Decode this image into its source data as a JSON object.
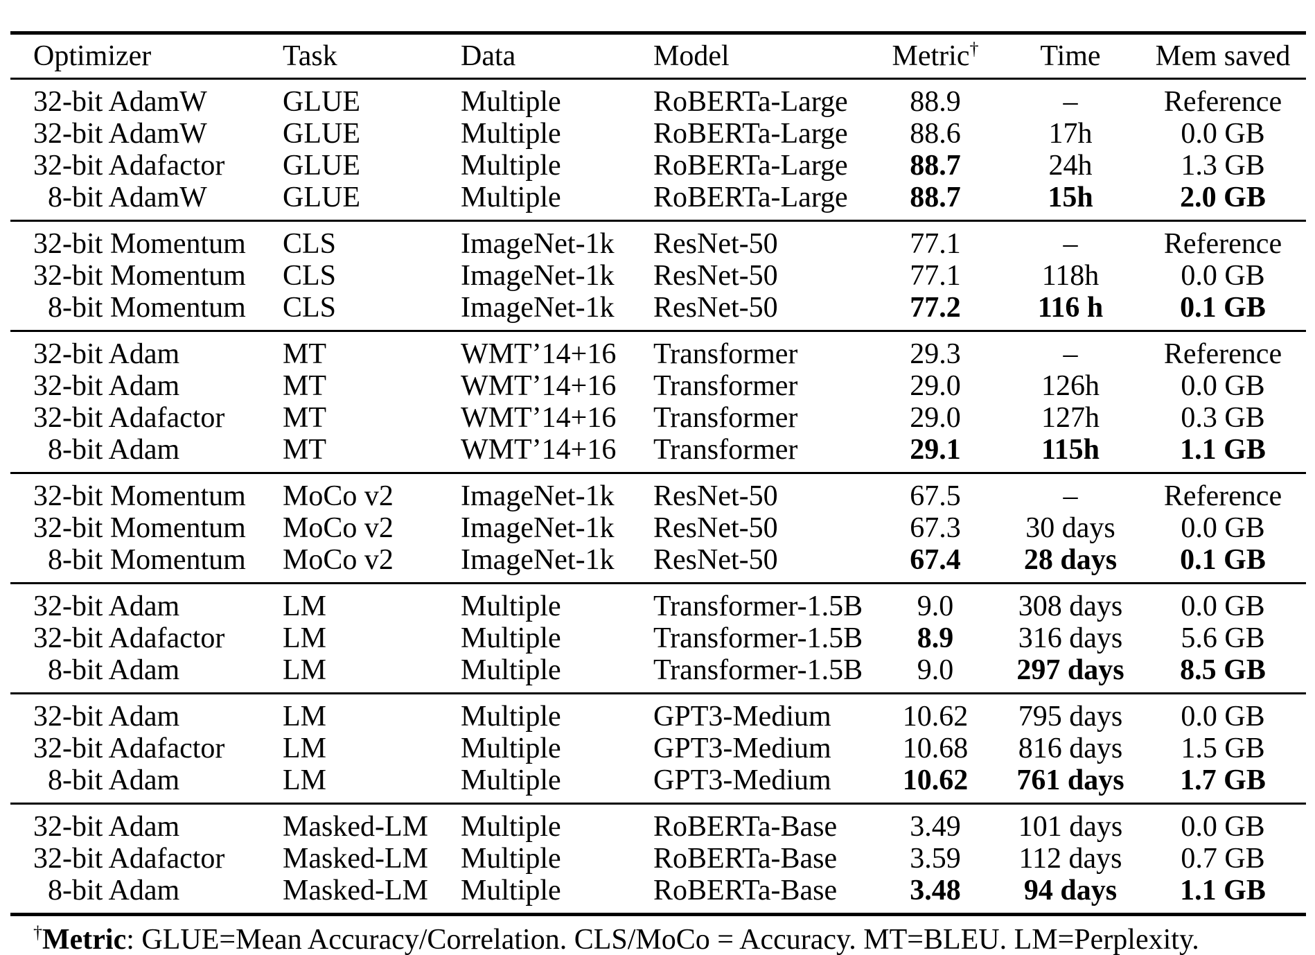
{
  "page": {
    "background_color": "#ffffff",
    "text_color": "#000000"
  },
  "table": {
    "columns": [
      {
        "label": "Optimizer",
        "align": "left"
      },
      {
        "label": "Task",
        "align": "left"
      },
      {
        "label": "Data",
        "align": "left"
      },
      {
        "label": "Model",
        "align": "left"
      },
      {
        "label": "Metric",
        "align": "center",
        "superscript": "†"
      },
      {
        "label": "Time",
        "align": "center"
      },
      {
        "label": "Mem saved",
        "align": "center"
      }
    ],
    "groups": [
      {
        "rows": [
          {
            "optimizer": "32-bit AdamW",
            "indent": false,
            "task": "GLUE",
            "data": "Multiple",
            "model": "RoBERTa-Large",
            "metric": "88.9",
            "metric_bold": false,
            "time": "–",
            "time_bold": false,
            "mem": "Reference",
            "mem_bold": false
          },
          {
            "optimizer": "32-bit AdamW",
            "indent": false,
            "task": "GLUE",
            "data": "Multiple",
            "model": "RoBERTa-Large",
            "metric": "88.6",
            "metric_bold": false,
            "time": "17h",
            "time_bold": false,
            "mem": "0.0 GB",
            "mem_bold": false
          },
          {
            "optimizer": "32-bit Adafactor",
            "indent": false,
            "task": "GLUE",
            "data": "Multiple",
            "model": "RoBERTa-Large",
            "metric": "88.7",
            "metric_bold": true,
            "time": "24h",
            "time_bold": false,
            "mem": "1.3 GB",
            "mem_bold": false
          },
          {
            "optimizer": "8-bit AdamW",
            "indent": true,
            "task": "GLUE",
            "data": "Multiple",
            "model": "RoBERTa-Large",
            "metric": "88.7",
            "metric_bold": true,
            "time": "15h",
            "time_bold": true,
            "mem": "2.0 GB",
            "mem_bold": true
          }
        ]
      },
      {
        "rows": [
          {
            "optimizer": "32-bit Momentum",
            "indent": false,
            "task": "CLS",
            "data": "ImageNet-1k",
            "model": "ResNet-50",
            "metric": "77.1",
            "metric_bold": false,
            "time": "–",
            "time_bold": false,
            "mem": "Reference",
            "mem_bold": false
          },
          {
            "optimizer": "32-bit Momentum",
            "indent": false,
            "task": "CLS",
            "data": "ImageNet-1k",
            "model": "ResNet-50",
            "metric": "77.1",
            "metric_bold": false,
            "time": "118h",
            "time_bold": false,
            "mem": "0.0 GB",
            "mem_bold": false
          },
          {
            "optimizer": "8-bit Momentum",
            "indent": true,
            "task": "CLS",
            "data": "ImageNet-1k",
            "model": "ResNet-50",
            "metric": "77.2",
            "metric_bold": true,
            "time": "116 h",
            "time_bold": true,
            "mem": "0.1 GB",
            "mem_bold": true
          }
        ]
      },
      {
        "rows": [
          {
            "optimizer": "32-bit Adam",
            "indent": false,
            "task": "MT",
            "data": "WMT’14+16",
            "model": "Transformer",
            "metric": "29.3",
            "metric_bold": false,
            "time": "–",
            "time_bold": false,
            "mem": "Reference",
            "mem_bold": false
          },
          {
            "optimizer": "32-bit Adam",
            "indent": false,
            "task": "MT",
            "data": "WMT’14+16",
            "model": "Transformer",
            "metric": "29.0",
            "metric_bold": false,
            "time": "126h",
            "time_bold": false,
            "mem": "0.0 GB",
            "mem_bold": false
          },
          {
            "optimizer": "32-bit Adafactor",
            "indent": false,
            "task": "MT",
            "data": "WMT’14+16",
            "model": "Transformer",
            "metric": "29.0",
            "metric_bold": false,
            "time": "127h",
            "time_bold": false,
            "mem": "0.3 GB",
            "mem_bold": false
          },
          {
            "optimizer": "8-bit Adam",
            "indent": true,
            "task": "MT",
            "data": "WMT’14+16",
            "model": "Transformer",
            "metric": "29.1",
            "metric_bold": true,
            "time": "115h",
            "time_bold": true,
            "mem": "1.1 GB",
            "mem_bold": true
          }
        ]
      },
      {
        "rows": [
          {
            "optimizer": "32-bit Momentum",
            "indent": false,
            "task": "MoCo v2",
            "data": "ImageNet-1k",
            "model": "ResNet-50",
            "metric": "67.5",
            "metric_bold": false,
            "time": "–",
            "time_bold": false,
            "mem": "Reference",
            "mem_bold": false
          },
          {
            "optimizer": "32-bit Momentum",
            "indent": false,
            "task": "MoCo v2",
            "data": "ImageNet-1k",
            "model": "ResNet-50",
            "metric": "67.3",
            "metric_bold": false,
            "time": "30 days",
            "time_bold": false,
            "mem": "0.0 GB",
            "mem_bold": false
          },
          {
            "optimizer": "8-bit Momentum",
            "indent": true,
            "task": "MoCo v2",
            "data": "ImageNet-1k",
            "model": "ResNet-50",
            "metric": "67.4",
            "metric_bold": true,
            "time": "28 days",
            "time_bold": true,
            "mem": "0.1 GB",
            "mem_bold": true
          }
        ]
      },
      {
        "rows": [
          {
            "optimizer": "32-bit Adam",
            "indent": false,
            "task": "LM",
            "data": "Multiple",
            "model": "Transformer-1.5B",
            "metric": "9.0",
            "metric_bold": false,
            "time": "308 days",
            "time_bold": false,
            "mem": "0.0 GB",
            "mem_bold": false
          },
          {
            "optimizer": "32-bit Adafactor",
            "indent": false,
            "task": "LM",
            "data": "Multiple",
            "model": "Transformer-1.5B",
            "metric": "8.9",
            "metric_bold": true,
            "time": "316 days",
            "time_bold": false,
            "mem": "5.6 GB",
            "mem_bold": false
          },
          {
            "optimizer": "8-bit Adam",
            "indent": true,
            "task": "LM",
            "data": "Multiple",
            "model": "Transformer-1.5B",
            "metric": "9.0",
            "metric_bold": false,
            "time": "297 days",
            "time_bold": true,
            "mem": "8.5 GB",
            "mem_bold": true
          }
        ]
      },
      {
        "rows": [
          {
            "optimizer": "32-bit Adam",
            "indent": false,
            "task": "LM",
            "data": "Multiple",
            "model": "GPT3-Medium",
            "metric": "10.62",
            "metric_bold": false,
            "time": "795 days",
            "time_bold": false,
            "mem": "0.0 GB",
            "mem_bold": false
          },
          {
            "optimizer": "32-bit Adafactor",
            "indent": false,
            "task": "LM",
            "data": "Multiple",
            "model": "GPT3-Medium",
            "metric": "10.68",
            "metric_bold": false,
            "time": "816 days",
            "time_bold": false,
            "mem": "1.5 GB",
            "mem_bold": false
          },
          {
            "optimizer": "8-bit Adam",
            "indent": true,
            "task": "LM",
            "data": "Multiple",
            "model": "GPT3-Medium",
            "metric": "10.62",
            "metric_bold": true,
            "time": "761 days",
            "time_bold": true,
            "mem": "1.7 GB",
            "mem_bold": true
          }
        ]
      },
      {
        "rows": [
          {
            "optimizer": "32-bit Adam",
            "indent": false,
            "task": "Masked-LM",
            "data": "Multiple",
            "model": "RoBERTa-Base",
            "metric": "3.49",
            "metric_bold": false,
            "time": "101 days",
            "time_bold": false,
            "mem": "0.0 GB",
            "mem_bold": false
          },
          {
            "optimizer": "32-bit Adafactor",
            "indent": false,
            "task": "Masked-LM",
            "data": "Multiple",
            "model": "RoBERTa-Base",
            "metric": "3.59",
            "metric_bold": false,
            "time": "112 days",
            "time_bold": false,
            "mem": "0.7 GB",
            "mem_bold": false
          },
          {
            "optimizer": "8-bit Adam",
            "indent": true,
            "task": "Masked-LM",
            "data": "Multiple",
            "model": "RoBERTa-Base",
            "metric": "3.48",
            "metric_bold": true,
            "time": "94 days",
            "time_bold": true,
            "mem": "1.1 GB",
            "mem_bold": true
          }
        ]
      }
    ],
    "footnote": {
      "dagger": "†",
      "label": "Metric",
      "text": ": GLUE=Mean Accuracy/Correlation. CLS/MoCo = Accuracy. MT=BLEU. LM=Perplexity."
    }
  }
}
